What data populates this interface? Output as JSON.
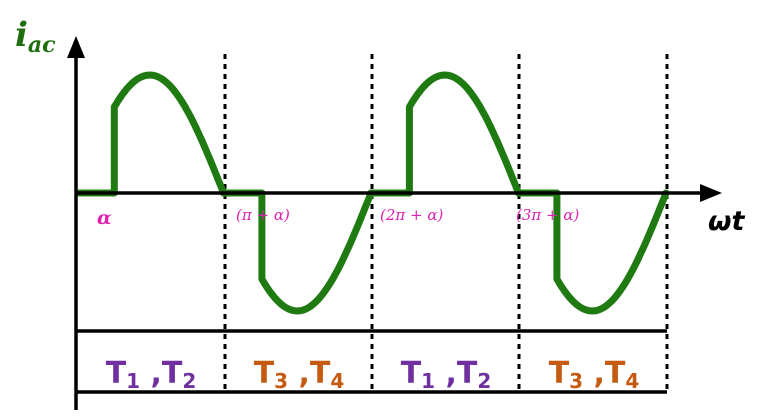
{
  "y_axis_label": {
    "main": "i",
    "sub": "ac"
  },
  "x_axis_label": "ωt",
  "angle_labels": [
    "α",
    "(π + α)",
    "(2π + α)",
    "(3π + α)"
  ],
  "thyristor_cells": [
    {
      "base1": "T",
      "sub1": "1",
      "sep": " ,",
      "base2": "T",
      "sub2": "2",
      "color": "#7030a0"
    },
    {
      "base1": "T",
      "sub1": "3",
      "sep": " ,",
      "base2": "T",
      "sub2": "4",
      "color": "#c55a11"
    },
    {
      "base1": "T",
      "sub1": "1",
      "sep": " ,",
      "base2": "T",
      "sub2": "2",
      "color": "#7030a0"
    },
    {
      "base1": "T",
      "sub1": "3",
      "sep": " ,",
      "base2": "T",
      "sub2": "4",
      "color": "#c55a11"
    }
  ],
  "colors": {
    "waveform": "#1f7a12",
    "axis": "#000000",
    "angle_labels": "#e020b0",
    "y_label": "#1f6e10"
  }
}
